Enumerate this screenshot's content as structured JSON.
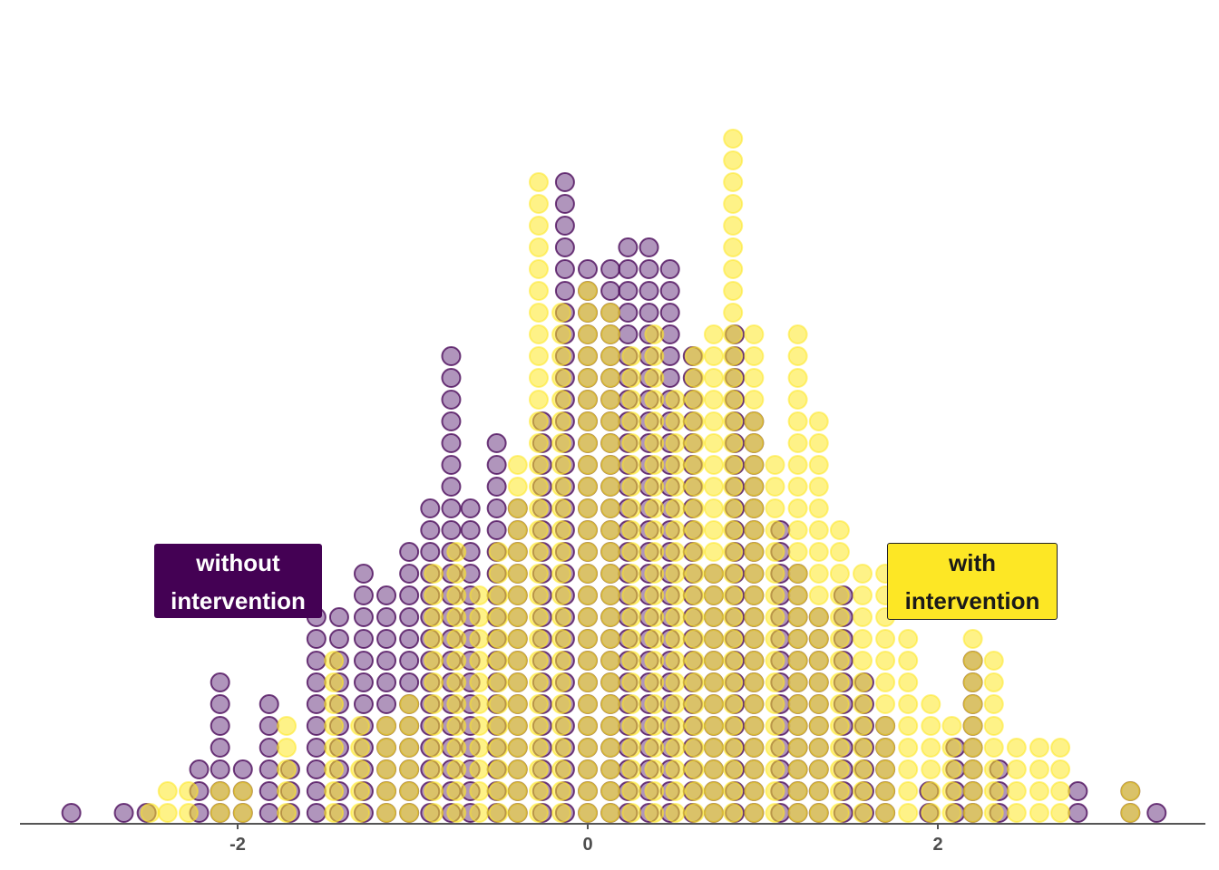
{
  "chart_data": {
    "type": "dotplot",
    "xlim": [
      -3.2,
      3.4
    ],
    "xticks": [
      -2,
      0,
      2
    ],
    "xtick_labels": [
      "-2",
      "0",
      "2"
    ],
    "grid": false,
    "series": [
      {
        "color": "#440154",
        "fill": "#7b4f8f",
        "label_lines": [
          "without",
          "intervention"
        ],
        "bins": [
          [
            -2.95,
            1
          ],
          [
            -2.65,
            1
          ],
          [
            -2.52,
            1
          ],
          [
            -2.22,
            3
          ],
          [
            -2.1,
            7
          ],
          [
            -1.97,
            3
          ],
          [
            -1.82,
            6
          ],
          [
            -1.7,
            3
          ],
          [
            -1.55,
            10
          ],
          [
            -1.42,
            10
          ],
          [
            -1.28,
            12
          ],
          [
            -1.15,
            11
          ],
          [
            -1.02,
            13
          ],
          [
            -0.9,
            15
          ],
          [
            -0.78,
            22
          ],
          [
            -0.67,
            15
          ],
          [
            -0.52,
            18
          ],
          [
            -0.4,
            15
          ],
          [
            -0.26,
            19
          ],
          [
            -0.13,
            30
          ],
          [
            0.0,
            26
          ],
          [
            0.13,
            26
          ],
          [
            0.23,
            27
          ],
          [
            0.35,
            27
          ],
          [
            0.47,
            26
          ],
          [
            0.6,
            22
          ],
          [
            0.72,
            12
          ],
          [
            0.84,
            23
          ],
          [
            0.95,
            19
          ],
          [
            1.1,
            14
          ],
          [
            1.2,
            12
          ],
          [
            1.32,
            10
          ],
          [
            1.46,
            11
          ],
          [
            1.58,
            7
          ],
          [
            1.7,
            5
          ],
          [
            1.95,
            2
          ],
          [
            2.1,
            4
          ],
          [
            2.2,
            8
          ],
          [
            2.35,
            3
          ],
          [
            2.8,
            2
          ],
          [
            3.1,
            2
          ],
          [
            3.25,
            1
          ]
        ]
      },
      {
        "color": "#fde725",
        "fill": "#fde725",
        "label_lines": [
          "with",
          "intervention"
        ],
        "bins": [
          [
            -2.5,
            1
          ],
          [
            -2.4,
            2
          ],
          [
            -2.28,
            2
          ],
          [
            -2.1,
            2
          ],
          [
            -1.97,
            2
          ],
          [
            -1.72,
            5
          ],
          [
            -1.45,
            8
          ],
          [
            -1.3,
            5
          ],
          [
            -1.15,
            5
          ],
          [
            -1.02,
            6
          ],
          [
            -0.88,
            12
          ],
          [
            -0.75,
            13
          ],
          [
            -0.62,
            11
          ],
          [
            -0.51,
            13
          ],
          [
            -0.4,
            17
          ],
          [
            -0.28,
            30
          ],
          [
            -0.15,
            24
          ],
          [
            0.0,
            25
          ],
          [
            0.13,
            24
          ],
          [
            0.25,
            22
          ],
          [
            0.38,
            23
          ],
          [
            0.5,
            20
          ],
          [
            0.61,
            22
          ],
          [
            0.72,
            23
          ],
          [
            0.83,
            32
          ],
          [
            0.95,
            23
          ],
          [
            1.07,
            17
          ],
          [
            1.2,
            23
          ],
          [
            1.32,
            19
          ],
          [
            1.44,
            14
          ],
          [
            1.57,
            12
          ],
          [
            1.7,
            12
          ],
          [
            1.83,
            9
          ],
          [
            1.96,
            6
          ],
          [
            2.08,
            5
          ],
          [
            2.2,
            9
          ],
          [
            2.32,
            8
          ],
          [
            2.45,
            4
          ],
          [
            2.58,
            4
          ],
          [
            2.7,
            4
          ],
          [
            3.1,
            2
          ]
        ]
      }
    ]
  }
}
